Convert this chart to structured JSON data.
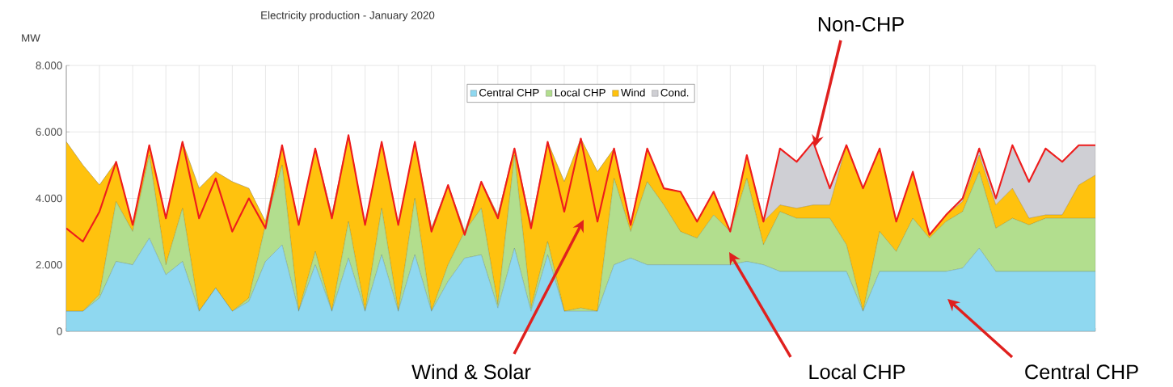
{
  "chart_data": {
    "type": "area",
    "title": "Electricity production - January 2020",
    "ylabel": "MW",
    "stacked": true,
    "grid": true,
    "legend": "top",
    "categories": [
      null,
      null,
      null,
      null,
      null,
      null,
      null,
      null,
      null,
      null,
      null,
      null,
      null,
      null,
      null,
      null,
      null,
      null,
      null,
      null,
      null,
      null,
      null,
      null,
      null,
      null,
      null,
      null,
      null,
      null,
      null,
      null,
      null,
      null,
      null,
      null,
      null,
      null,
      null,
      null,
      null,
      null,
      null,
      null,
      null,
      null,
      null,
      null,
      null,
      null,
      null,
      null,
      null,
      null,
      null,
      null,
      null,
      null,
      null,
      null,
      null,
      null,
      null
    ],
    "ylim": [
      0,
      8000
    ],
    "yticks": [
      0,
      {
        "value": 2000,
        "label": "2.000"
      },
      {
        "value": 4000,
        "label": "4.000"
      },
      {
        "value": 6000,
        "label": "6.000"
      },
      {
        "value": 8000,
        "label": "8.000"
      }
    ],
    "series": [
      {
        "name": "Central CHP",
        "color": "#8fd8f0",
        "values": [
          600,
          600,
          1000,
          2100,
          2000,
          2800,
          1700,
          2100,
          600,
          1300,
          600,
          900,
          2100,
          2600,
          600,
          2000,
          600,
          2200,
          600,
          2300,
          600,
          2300,
          600,
          1500,
          2200,
          2300,
          700,
          2500,
          600,
          2300,
          600,
          600,
          600,
          2000,
          2200,
          2000,
          2000,
          2000,
          2000,
          2000,
          2000,
          2100,
          2000,
          1800,
          1800,
          1800,
          1800,
          1800,
          600,
          1800,
          1800,
          1800,
          1800,
          1800,
          1900,
          2500,
          1800,
          1800,
          1800,
          1800,
          1800,
          1800,
          1800
        ]
      },
      {
        "name": "Local CHP",
        "color": "#b2de8e",
        "values": [
          0,
          0,
          100,
          1800,
          1000,
          2500,
          300,
          1600,
          0,
          0,
          0,
          100,
          1100,
          2400,
          0,
          400,
          0,
          1100,
          0,
          1400,
          0,
          1700,
          0,
          500,
          800,
          1400,
          100,
          2800,
          100,
          400,
          0,
          100,
          0,
          2600,
          800,
          2500,
          1800,
          1000,
          800,
          1500,
          1000,
          2500,
          600,
          1800,
          1600,
          1600,
          1600,
          800,
          0,
          1200,
          600,
          1600,
          1000,
          1500,
          1700,
          2300,
          1300,
          1600,
          1400,
          1600,
          1600,
          1600,
          1600
        ]
      },
      {
        "name": "Wind",
        "color": "#ffc20e",
        "values": [
          5100,
          4400,
          3300,
          1200,
          200,
          300,
          1400,
          2000,
          3700,
          3500,
          3900,
          3300,
          100,
          600,
          2600,
          3100,
          2900,
          2600,
          2600,
          2000,
          2600,
          1700,
          2500,
          2400,
          0,
          800,
          2700,
          200,
          2500,
          3000,
          3900,
          5100,
          4200,
          900,
          200,
          1000,
          500,
          1200,
          500,
          700,
          0,
          700,
          700,
          200,
          300,
          400,
          400,
          3000,
          3700,
          2500,
          900,
          1400,
          100,
          200,
          300,
          500,
          700,
          900,
          200,
          100,
          100,
          1000,
          1300
        ]
      },
      {
        "name": "Cond.",
        "color": "#cfcfd4",
        "values": [
          0,
          0,
          0,
          0,
          0,
          0,
          0,
          0,
          0,
          0,
          0,
          0,
          0,
          0,
          0,
          0,
          0,
          0,
          0,
          0,
          0,
          0,
          0,
          0,
          0,
          0,
          0,
          0,
          0,
          0,
          0,
          0,
          0,
          0,
          0,
          0,
          0,
          0,
          0,
          0,
          0,
          0,
          0,
          1700,
          1400,
          1900,
          500,
          0,
          0,
          0,
          0,
          0,
          0,
          0,
          100,
          200,
          200,
          1300,
          1100,
          2000,
          1600,
          1200,
          900
        ]
      },
      {
        "type": "line",
        "color": "#ee1c1c",
        "values": [
          3100,
          2700,
          3600,
          5100,
          3200,
          5600,
          3400,
          5700,
          3400,
          4600,
          3000,
          4000,
          3100,
          5600,
          3200,
          5500,
          3400,
          5900,
          3200,
          5700,
          3200,
          5700,
          3000,
          4400,
          2900,
          4500,
          3400,
          5500,
          3100,
          5700,
          3600,
          5800,
          3300,
          5500,
          3200,
          5500,
          4300,
          4200,
          3300,
          4200,
          3000,
          5300,
          3300,
          5500,
          5100,
          5700,
          4300,
          5600,
          4300,
          5500,
          3300,
          4800,
          2900,
          3500,
          4000,
          5500,
          4000,
          5600,
          4500,
          5500,
          5100,
          5600,
          5600
        ]
      }
    ],
    "annotations": [
      "Non-CHP",
      "Wind & Solar",
      "Local CHP",
      "Central CHP"
    ]
  }
}
